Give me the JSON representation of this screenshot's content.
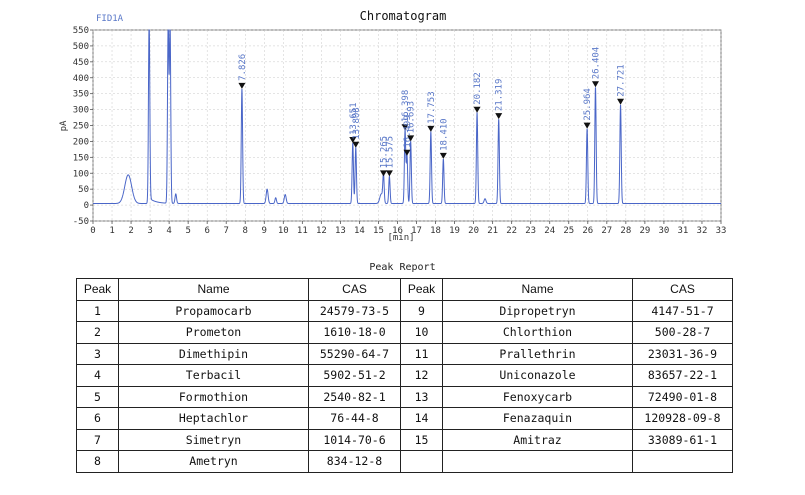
{
  "chart_data": {
    "type": "line",
    "title": "Chromatogram",
    "detector_label": "FID1A",
    "xlabel": "[min]",
    "ylabel": "pA",
    "xlim": [
      0,
      33
    ],
    "ylim": [
      -50,
      550
    ],
    "x_ticks": [
      0,
      1,
      2,
      3,
      4,
      5,
      6,
      7,
      8,
      9,
      10,
      11,
      12,
      13,
      14,
      15,
      16,
      17,
      18,
      19,
      20,
      21,
      22,
      23,
      24,
      25,
      26,
      27,
      28,
      29,
      30,
      31,
      32,
      33
    ],
    "y_ticks": [
      -50,
      0,
      50,
      100,
      150,
      200,
      250,
      300,
      350,
      400,
      450,
      500,
      550
    ],
    "line_color": "#4a66c8",
    "peaks": [
      {
        "rt": 7.826,
        "label": "7.826",
        "height": 360
      },
      {
        "rt": 13.651,
        "label": "13.651",
        "height": 190
      },
      {
        "rt": 13.808,
        "label": "13.808",
        "height": 175
      },
      {
        "rt": 15.265,
        "label": "15.265",
        "height": 85
      },
      {
        "rt": 15.575,
        "label": "15.575",
        "height": 85
      },
      {
        "rt": 16.398,
        "label": "16.398",
        "height": 230
      },
      {
        "rt": 16.499,
        "label": "16.499",
        "height": 150
      },
      {
        "rt": 16.693,
        "label": "16.693",
        "height": 195
      },
      {
        "rt": 17.753,
        "label": "17.753",
        "height": 225
      },
      {
        "rt": 18.41,
        "label": "18.410",
        "height": 140
      },
      {
        "rt": 20.182,
        "label": "20.182",
        "height": 285
      },
      {
        "rt": 21.319,
        "label": "21.319",
        "height": 265
      },
      {
        "rt": 25.964,
        "label": "25.964",
        "height": 235
      },
      {
        "rt": 26.404,
        "label": "26.404",
        "height": 365
      },
      {
        "rt": 27.721,
        "label": "27.721",
        "height": 310
      }
    ],
    "minor_peaks": [
      {
        "rt": 1.85,
        "height": 90,
        "width": 0.18
      },
      {
        "rt": 9.15,
        "height": 45,
        "width": 0.05
      },
      {
        "rt": 9.6,
        "height": 18,
        "width": 0.04
      },
      {
        "rt": 10.1,
        "height": 28,
        "width": 0.05
      },
      {
        "rt": 4.35,
        "height": 30,
        "width": 0.04
      },
      {
        "rt": 15.15,
        "height": 30,
        "width": 0.08
      },
      {
        "rt": 20.6,
        "height": 15,
        "width": 0.05
      }
    ],
    "solvent_peaks": [
      {
        "rt": 2.95,
        "height": 560
      },
      {
        "rt": 3.95,
        "height": 560
      },
      {
        "rt": 4.05,
        "height": 560
      }
    ]
  },
  "report": {
    "title": "Peak Report",
    "headers": [
      "Peak",
      "Name",
      "CAS",
      "Peak",
      "Name",
      "CAS"
    ],
    "rows": [
      [
        "1",
        "Propamocarb",
        "24579-73-5",
        "9",
        "Dipropetryn",
        "4147-51-7"
      ],
      [
        "2",
        "Prometon",
        "1610-18-0",
        "10",
        "Chlorthion",
        "500-28-7"
      ],
      [
        "3",
        "Dimethipin",
        "55290-64-7",
        "11",
        "Prallethrin",
        "23031-36-9"
      ],
      [
        "4",
        "Terbacil",
        "5902-51-2",
        "12",
        "Uniconazole",
        "83657-22-1"
      ],
      [
        "5",
        "Formothion",
        "2540-82-1",
        "13",
        "Fenoxycarb",
        "72490-01-8"
      ],
      [
        "6",
        "Heptachlor",
        "76-44-8",
        "14",
        "Fenazaquin",
        "120928-09-8"
      ],
      [
        "7",
        "Simetryn",
        "1014-70-6",
        "15",
        "Amitraz",
        "33089-61-1"
      ],
      [
        "8",
        "Ametryn",
        "834-12-8",
        "",
        "",
        ""
      ]
    ]
  }
}
